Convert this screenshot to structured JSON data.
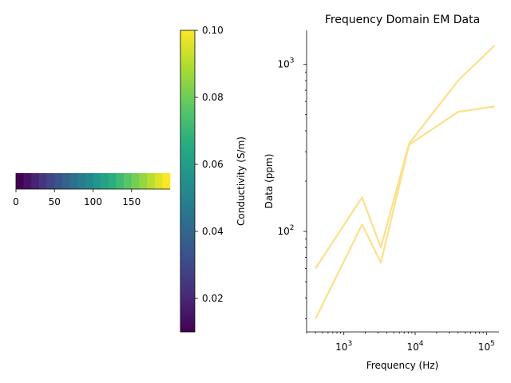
{
  "left_panel": {
    "strip_values": [
      10,
      20,
      30,
      40,
      50,
      60,
      70,
      80,
      90,
      100,
      110,
      120,
      130,
      140,
      150,
      160,
      170,
      180,
      190,
      200
    ],
    "strip_xticks": [
      "0",
      "50",
      "100",
      "150"
    ]
  },
  "colorbar": {
    "label": "Conductivity (S/m)",
    "range": [
      0.01,
      0.1
    ],
    "ticks": [
      "0.02",
      "0.04",
      "0.06",
      "0.08",
      "0.10"
    ],
    "tick_values": [
      0.02,
      0.04,
      0.06,
      0.08,
      0.1
    ],
    "colormap": "viridis"
  },
  "chart_data": {
    "type": "line",
    "title": "Frequency Domain EM Data",
    "xlabel": "Frequency (Hz)",
    "ylabel": "Data (ppm)",
    "xscale": "log",
    "yscale": "log",
    "x": [
      400,
      1800,
      3300,
      8200,
      40000,
      130000
    ],
    "series": [
      {
        "values": [
          60,
          160,
          80,
          335,
          800,
          1300
        ],
        "color": "#fce08a"
      },
      {
        "values": [
          30,
          110,
          65,
          330,
          520,
          560
        ],
        "color": "#fce08a"
      }
    ],
    "xticks": [
      "10^3",
      "10^4",
      "10^5"
    ],
    "xtick_values": [
      1000,
      10000,
      100000
    ],
    "yticks": [
      "10^2",
      "10^3"
    ],
    "ytick_values": [
      100,
      1000
    ],
    "xlim": [
      300,
      150000
    ],
    "ylim": [
      25,
      1600
    ]
  }
}
